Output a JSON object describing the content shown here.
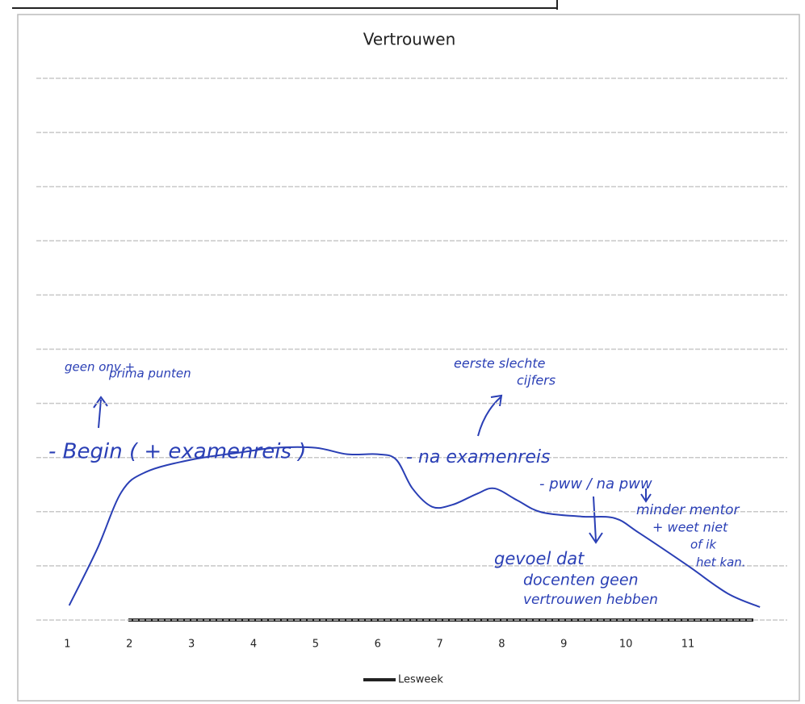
{
  "chart_data": {
    "type": "line",
    "title": "Vertrouwen",
    "legend": "Lesweek",
    "xticks": [
      1,
      2,
      3,
      4,
      5,
      6,
      7,
      8,
      9,
      10,
      11
    ],
    "xlim": [
      0.5,
      12.6
    ],
    "ylim": [
      0,
      10
    ],
    "yticks": [
      0,
      1,
      2,
      3,
      4,
      5,
      6,
      7,
      8,
      9,
      10
    ],
    "grid": true,
    "series": [
      {
        "color": "#2a3fb5",
        "x": [
          1.03,
          1.48,
          1.87,
          2.26,
          3,
          3.83,
          4.35,
          5,
          5.51,
          6,
          6.3,
          6.56,
          6.88,
          7.21,
          7.6,
          7.88,
          8.25,
          8.64,
          9.29,
          9.82,
          10.21,
          10.99,
          11.64,
          12.16
        ],
        "values": [
          0.27,
          1.31,
          2.36,
          2.73,
          2.96,
          3.1,
          3.18,
          3.18,
          3.06,
          3.06,
          2.96,
          2.43,
          2.09,
          2.13,
          2.33,
          2.43,
          2.21,
          1.99,
          1.91,
          1.88,
          1.61,
          1.01,
          0.49,
          0.24
        ]
      }
    ],
    "annotations": [
      "geen onv +",
      "prima punten",
      "- Begin ( + examenreis )",
      "eerste slechte",
      "cijfers",
      "- na examenreis",
      "- pww / na pww",
      "minder mentor",
      "+ weet niet",
      "of ik",
      "het kan.",
      "gevoel dat",
      "docenten geen",
      "vertrouwen hebben"
    ]
  }
}
